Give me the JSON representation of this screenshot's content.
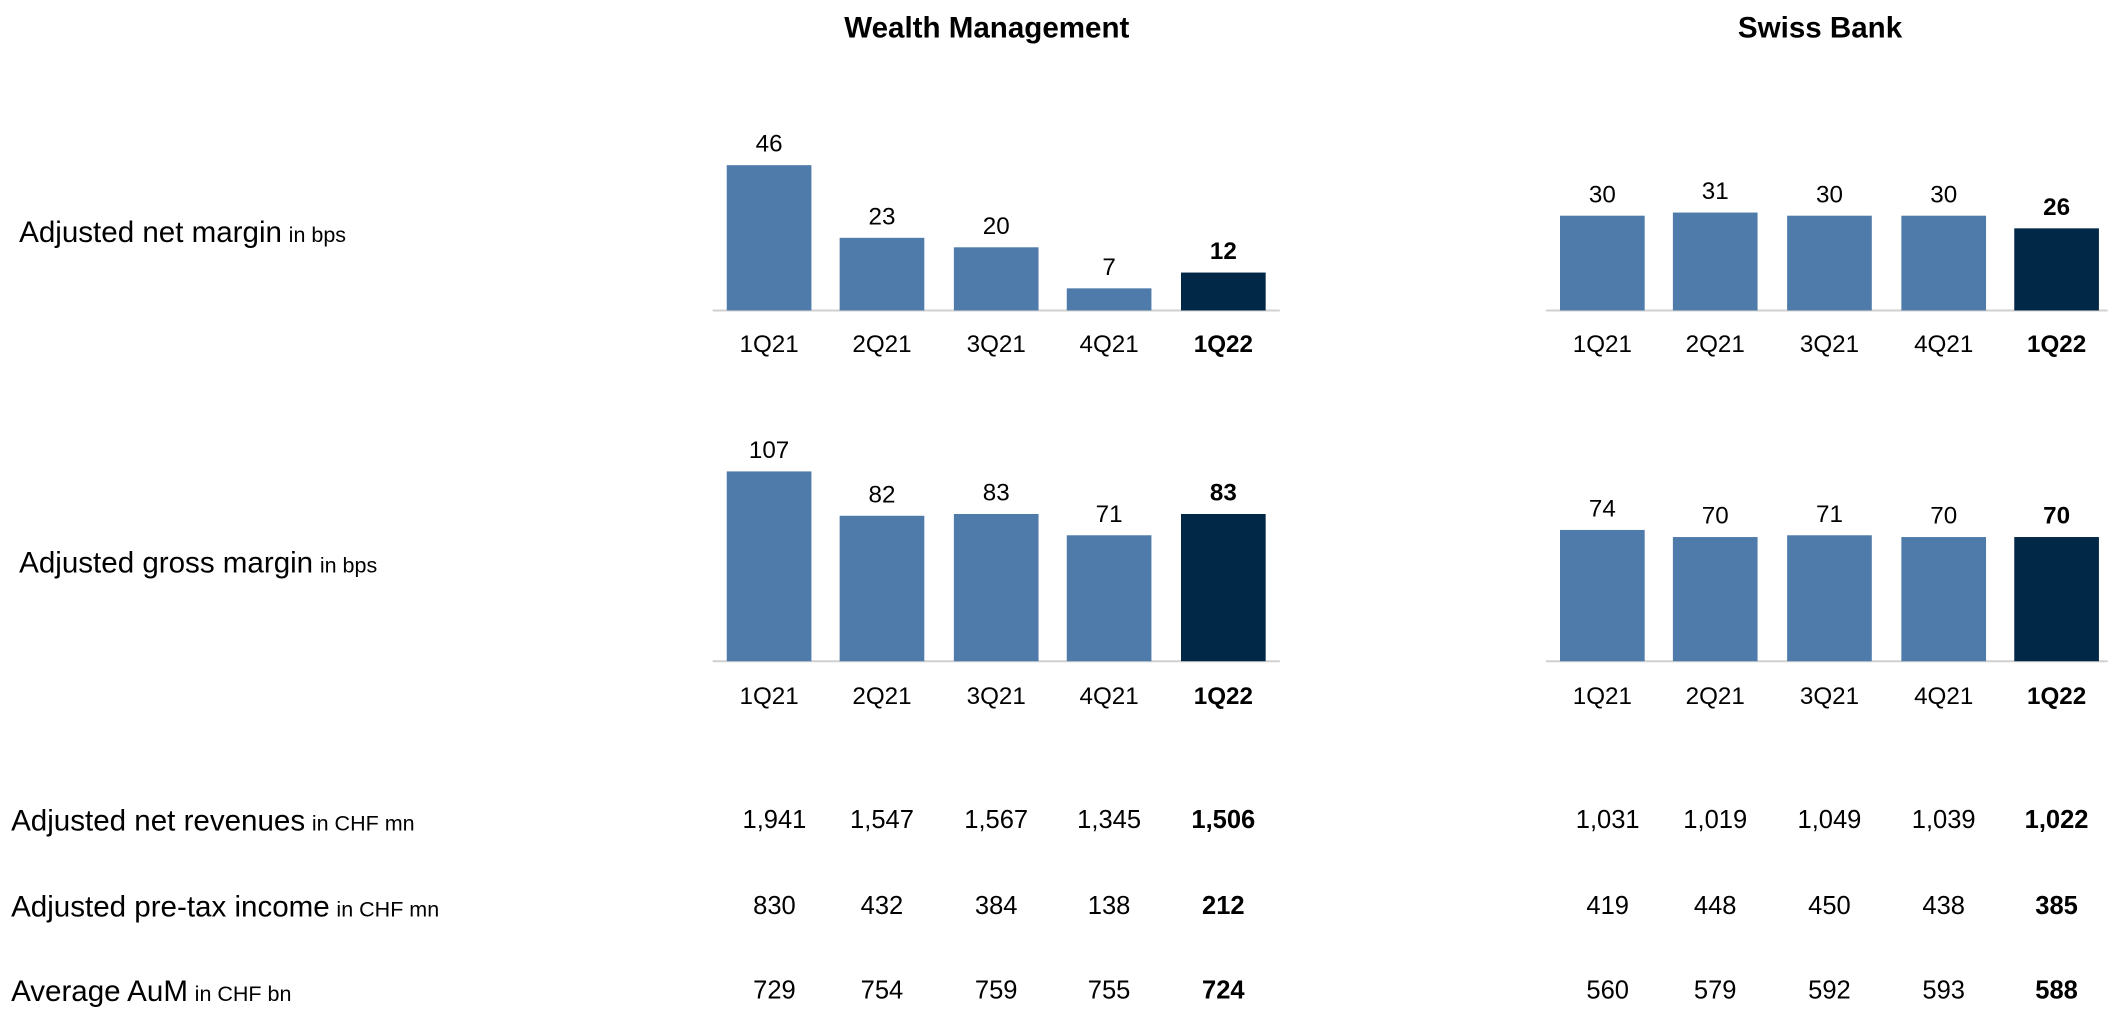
{
  "panels": [
    {
      "title": "Wealth Management"
    },
    {
      "title": "Swiss Bank"
    }
  ],
  "rows": [
    {
      "label": "Adjusted net margin",
      "unit": "in bps"
    },
    {
      "label": "Adjusted gross margin",
      "unit": "in bps"
    },
    {
      "label": "Adjusted net revenues",
      "unit": "in CHF mn"
    },
    {
      "label": "Adjusted pre-tax income",
      "unit": "in CHF mn"
    },
    {
      "label": "Average AuM",
      "unit": "in CHF bn"
    }
  ],
  "chart_data": [
    {
      "type": "bar",
      "categories": [
        "1Q21",
        "2Q21",
        "3Q21",
        "4Q21",
        "1Q22"
      ],
      "values": [
        46,
        23,
        20,
        7,
        12
      ],
      "colors": [
        "#4f7bab",
        "#4f7bab",
        "#4f7bab",
        "#4f7bab",
        "#022848"
      ],
      "ylim": [
        0,
        50
      ]
    },
    {
      "type": "bar",
      "categories": [
        "1Q21",
        "2Q21",
        "3Q21",
        "4Q21",
        "1Q22"
      ],
      "values": [
        107,
        82,
        83,
        71,
        83
      ],
      "colors": [
        "#4f7bab",
        "#4f7bab",
        "#4f7bab",
        "#4f7bab",
        "#022848"
      ],
      "ylim": [
        0,
        110
      ]
    },
    {
      "type": "bar",
      "categories": [
        "1Q21",
        "2Q21",
        "3Q21",
        "4Q21",
        "1Q22"
      ],
      "values": [
        30,
        31,
        30,
        30,
        26
      ],
      "colors": [
        "#4f7bab",
        "#4f7bab",
        "#4f7bab",
        "#4f7bab",
        "#022848"
      ],
      "ylim": [
        0,
        50
      ]
    },
    {
      "type": "bar",
      "categories": [
        "1Q21",
        "2Q21",
        "3Q21",
        "4Q21",
        "1Q22"
      ],
      "values": [
        74,
        70,
        71,
        70,
        70
      ],
      "colors": [
        "#4f7bab",
        "#4f7bab",
        "#4f7bab",
        "#4f7bab",
        "#022848"
      ],
      "ylim": [
        0,
        110
      ]
    }
  ],
  "table": [
    [
      [
        "1,941",
        "1,547",
        "1,567",
        "1,345",
        "1,506"
      ],
      [
        "830",
        "432",
        "384",
        "138",
        "212"
      ],
      [
        "729",
        "754",
        "759",
        "755",
        "724"
      ]
    ],
    [
      [
        "1,031",
        "1,019",
        "1,049",
        "1,039",
        "1,022"
      ],
      [
        "419",
        "448",
        "450",
        "438",
        "385"
      ],
      [
        "560",
        "579",
        "592",
        "593",
        "588"
      ]
    ]
  ]
}
